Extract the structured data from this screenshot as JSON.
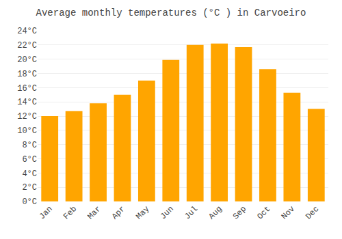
{
  "chart_data": {
    "type": "bar",
    "title": "Average monthly temperatures (°C ) in Carvoeiro",
    "categories": [
      "Jan",
      "Feb",
      "Mar",
      "Apr",
      "May",
      "Jun",
      "Jul",
      "Aug",
      "Sep",
      "Oct",
      "Nov",
      "Dec"
    ],
    "values": [
      12.0,
      12.7,
      13.8,
      15.0,
      17.0,
      19.9,
      22.0,
      22.2,
      21.7,
      18.6,
      15.3,
      13.0
    ],
    "color": "#FFA500",
    "ylim": [
      0,
      24
    ],
    "yticks": [
      {
        "value": 0,
        "label": "0°C"
      },
      {
        "value": 2,
        "label": "2°C"
      },
      {
        "value": 4,
        "label": "4°C"
      },
      {
        "value": 6,
        "label": "6°C"
      },
      {
        "value": 8,
        "label": "8°C"
      },
      {
        "value": 10,
        "label": "10°C"
      },
      {
        "value": 12,
        "label": "12°C"
      },
      {
        "value": 14,
        "label": "14°C"
      },
      {
        "value": 16,
        "label": "16°C"
      },
      {
        "value": 18,
        "label": "18°C"
      },
      {
        "value": 20,
        "label": "20°C"
      },
      {
        "value": 22,
        "label": "22°C"
      },
      {
        "value": 24,
        "label": "24°C"
      }
    ],
    "grid": true
  }
}
